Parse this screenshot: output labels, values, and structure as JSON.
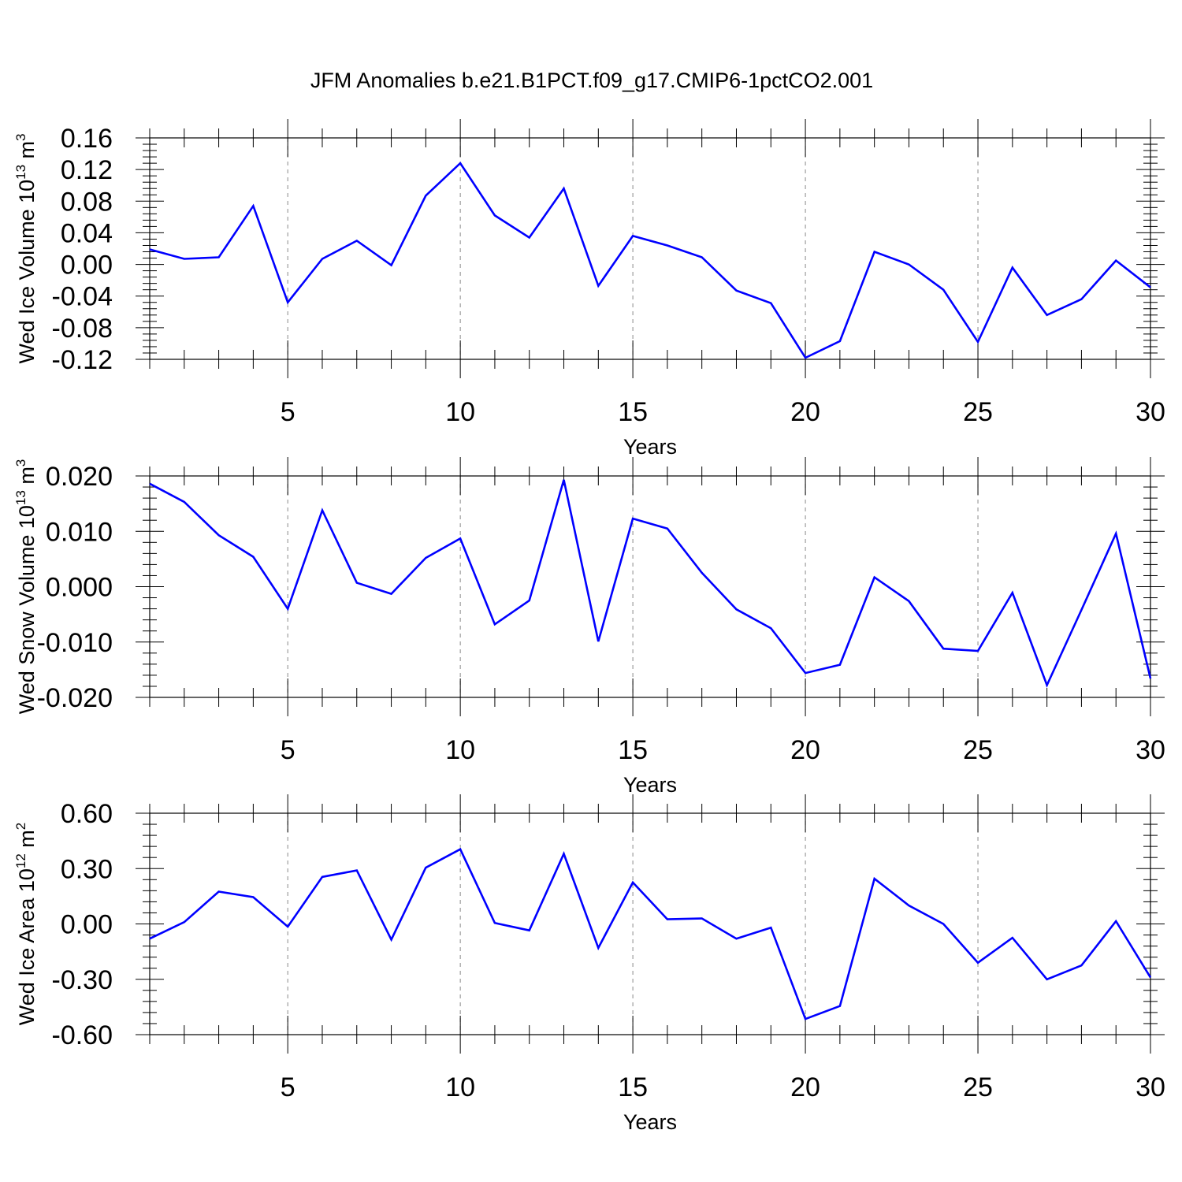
{
  "title": "JFM Anomalies b.e21.B1PCT.f09_g17.CMIP6-1pctCO2.001",
  "chart_data": [
    {
      "type": "line",
      "title": "JFM Anomalies b.e21.B1PCT.f09_g17.CMIP6-1pctCO2.001",
      "ylabel": "Wed Ice Volume 10",
      "ylabel_exp": "13",
      "ylabel_unit": " m",
      "ylabel_unit_exp": "3",
      "xlabel": "Years",
      "xlim": [
        1,
        30
      ],
      "ylim": [
        -0.12,
        0.16
      ],
      "xticks": [
        5,
        10,
        15,
        20,
        25,
        30
      ],
      "xtick_labels": [
        "5",
        "10",
        "15",
        "20",
        "25",
        "30"
      ],
      "yticks": [
        -0.12,
        -0.08,
        -0.04,
        0.0,
        0.04,
        0.08,
        0.12,
        0.16
      ],
      "ytick_labels": [
        "-0.12",
        "-0.08",
        "-0.04",
        "0.00",
        "0.04",
        "0.08",
        "0.12",
        "0.16"
      ],
      "grid": "vertical dashed at major x ticks",
      "color": "#0000ff",
      "x": [
        1,
        2,
        3,
        4,
        5,
        6,
        7,
        8,
        9,
        10,
        11,
        12,
        13,
        14,
        15,
        16,
        17,
        18,
        19,
        20,
        21,
        22,
        23,
        24,
        25,
        26,
        27,
        28,
        29,
        30
      ],
      "values": [
        0.019,
        0.007,
        0.009,
        0.074,
        -0.048,
        0.007,
        0.03,
        -0.001,
        0.087,
        0.128,
        0.062,
        0.034,
        0.096,
        -0.027,
        0.036,
        0.024,
        0.009,
        -0.033,
        -0.049,
        -0.118,
        -0.097,
        0.016,
        0.0,
        -0.032,
        -0.098,
        -0.004,
        -0.064,
        -0.044,
        0.005,
        -0.029
      ]
    },
    {
      "type": "line",
      "ylabel": "Wed Snow Volume 10",
      "ylabel_exp": "13",
      "ylabel_unit": " m",
      "ylabel_unit_exp": "3",
      "xlabel": "Years",
      "xlim": [
        1,
        30
      ],
      "ylim": [
        -0.02,
        0.02
      ],
      "xticks": [
        5,
        10,
        15,
        20,
        25,
        30
      ],
      "xtick_labels": [
        "5",
        "10",
        "15",
        "20",
        "25",
        "30"
      ],
      "yticks": [
        -0.02,
        -0.01,
        0.0,
        0.01,
        0.02
      ],
      "ytick_labels": [
        "-0.020",
        "-0.010",
        "0.000",
        "0.010",
        "0.020"
      ],
      "grid": "vertical dashed at major x ticks",
      "color": "#0000ff",
      "x": [
        1,
        2,
        3,
        4,
        5,
        6,
        7,
        8,
        9,
        10,
        11,
        12,
        13,
        14,
        15,
        16,
        17,
        18,
        19,
        20,
        21,
        22,
        23,
        24,
        25,
        26,
        27,
        28,
        29,
        30
      ],
      "values": [
        0.0186,
        0.0153,
        0.0093,
        0.0054,
        -0.004,
        0.0138,
        0.0007,
        -0.0013,
        0.0052,
        0.0087,
        -0.0068,
        -0.0025,
        0.0193,
        -0.0099,
        0.0123,
        0.0105,
        0.0025,
        -0.0041,
        -0.0075,
        -0.0156,
        -0.0141,
        0.0017,
        -0.0026,
        -0.0112,
        -0.0116,
        -0.0011,
        -0.0178,
        -0.0042,
        0.0096,
        -0.0166
      ]
    },
    {
      "type": "line",
      "ylabel": "Wed Ice Area 10",
      "ylabel_exp": "12",
      "ylabel_unit": " m",
      "ylabel_unit_exp": "2",
      "xlabel": "Years",
      "xlim": [
        1,
        30
      ],
      "ylim": [
        -0.6,
        0.6
      ],
      "xticks": [
        5,
        10,
        15,
        20,
        25,
        30
      ],
      "xtick_labels": [
        "5",
        "10",
        "15",
        "20",
        "25",
        "30"
      ],
      "yticks": [
        -0.6,
        -0.3,
        0.0,
        0.3,
        0.6
      ],
      "ytick_labels": [
        "-0.60",
        "-0.30",
        "0.00",
        "0.30",
        "0.60"
      ],
      "grid": "vertical dashed at major x ticks",
      "color": "#0000ff",
      "x": [
        1,
        2,
        3,
        4,
        5,
        6,
        7,
        8,
        9,
        10,
        11,
        12,
        13,
        14,
        15,
        16,
        17,
        18,
        19,
        20,
        21,
        22,
        23,
        24,
        25,
        26,
        27,
        28,
        29,
        30
      ],
      "values": [
        -0.08,
        0.01,
        0.175,
        0.145,
        -0.015,
        0.255,
        0.29,
        -0.085,
        0.305,
        0.405,
        0.005,
        -0.035,
        0.38,
        -0.13,
        0.225,
        0.025,
        0.03,
        -0.08,
        -0.02,
        -0.515,
        -0.445,
        0.245,
        0.1,
        0.0,
        -0.21,
        -0.075,
        -0.3,
        -0.225,
        0.015,
        -0.29
      ]
    }
  ]
}
